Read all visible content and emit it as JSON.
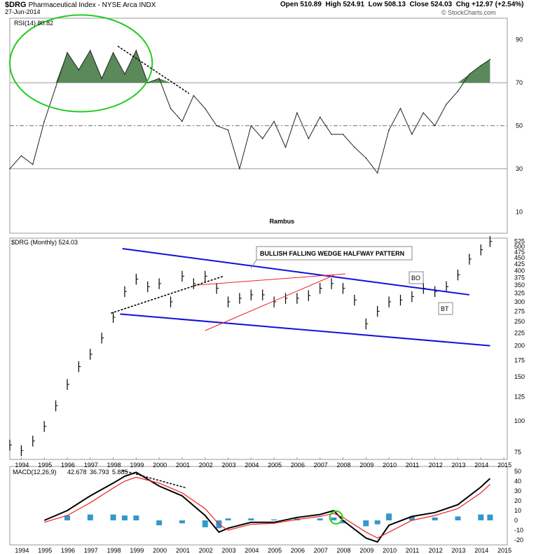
{
  "header": {
    "symbol": "$DRG",
    "name": "Pharmaceutical Index - NYSE Arca INDX",
    "date": "27-Jun-2014",
    "open_label": "Open",
    "open": "510.89",
    "high_label": "High",
    "high": "524.91",
    "low_label": "Low",
    "low": "508.13",
    "close_label": "Close",
    "close": "524.03",
    "chg_label": "Chg",
    "chg": "+12.97 (+2.54%)",
    "watermark": "© StockCharts.com"
  },
  "colors": {
    "rsi_fill": "#5a8a5a",
    "ellipse": "#22cc22",
    "wedge": "#1010dd",
    "red_line": "#ee2222",
    "macd_red": "#ee2222",
    "histogram": "#3399cc",
    "note_text": "#1010cc"
  },
  "chart_data": [
    {
      "type": "line",
      "panel": "RSI",
      "legend": "RSI(14) 80.82",
      "ylim": [
        0,
        100
      ],
      "y_ticks": [
        "90",
        "70",
        "50",
        "30",
        "10"
      ],
      "reference_lines": [
        70,
        50,
        30
      ],
      "annotation": "Rambus",
      "x": [
        1993.5,
        1994,
        1994.5,
        1995,
        1995.5,
        1996,
        1996.5,
        1997,
        1997.5,
        1998,
        1998.5,
        1999,
        1999.5,
        2000,
        2000.5,
        2001,
        2001.5,
        2002,
        2002.5,
        2003,
        2003.5,
        2004,
        2004.5,
        2005,
        2005.5,
        2006,
        2006.5,
        2007,
        2007.5,
        2008,
        2008.5,
        2009,
        2009.5,
        2010,
        2010.5,
        2011,
        2011.5,
        2012,
        2012.5,
        2013,
        2013.5,
        2014,
        2014.4
      ],
      "values": [
        30,
        36,
        32,
        52,
        68,
        84,
        76,
        85,
        72,
        84,
        74,
        85,
        70,
        72,
        58,
        52,
        64,
        58,
        50,
        48,
        30,
        50,
        44,
        52,
        40,
        56,
        44,
        54,
        46,
        46,
        40,
        35,
        28,
        48,
        58,
        46,
        56,
        50,
        60,
        66,
        74,
        78,
        80.8
      ]
    },
    {
      "type": "bar",
      "panel": "Price",
      "legend": "$DRG (Monthly) 524.03",
      "log_scale": true,
      "ylim": [
        70,
        540
      ],
      "y_ticks": [
        "525",
        "500",
        "475",
        "450",
        "425",
        "400",
        "375",
        "350",
        "325",
        "300",
        "275",
        "250",
        "225",
        "200",
        "175",
        "150",
        "125",
        "100",
        "75"
      ],
      "x_ticks": [
        "1994",
        "1995",
        "1996",
        "1997",
        "1998",
        "1999",
        "2000",
        "2001",
        "2002",
        "2003",
        "2004",
        "2005",
        "2006",
        "2007",
        "2008",
        "2009",
        "2010",
        "2011",
        "2012",
        "2013",
        "2014",
        "2015"
      ],
      "x": [
        1993.5,
        1994,
        1994.5,
        1995,
        1995.5,
        1996,
        1996.5,
        1997,
        1997.5,
        1998,
        1998.5,
        1999,
        1999.5,
        2000,
        2000.5,
        2001,
        2001.5,
        2002,
        2002.5,
        2003,
        2003.5,
        2004,
        2004.5,
        2005,
        2005.5,
        2006,
        2006.5,
        2007,
        2007.5,
        2008,
        2008.5,
        2009,
        2009.5,
        2010,
        2010.5,
        2011,
        2011.5,
        2012,
        2012.5,
        2013,
        2013.5,
        2014,
        2014.4
      ],
      "values": [
        80,
        76,
        83,
        95,
        115,
        140,
        165,
        185,
        215,
        260,
        330,
        370,
        345,
        355,
        300,
        380,
        355,
        380,
        340,
        300,
        310,
        320,
        320,
        300,
        310,
        310,
        318,
        340,
        355,
        340,
        305,
        245,
        275,
        300,
        305,
        315,
        340,
        330,
        345,
        385,
        445,
        485,
        524
      ],
      "annotations": [
        "BULLISH FALLING WEDGE HALFWAY PATTERN",
        "BO",
        "BT"
      ],
      "trendlines": [
        {
          "name": "wedge-upper",
          "from": [
            1998.4,
            490
          ],
          "to": [
            2013.5,
            320
          ]
        },
        {
          "name": "wedge-lower",
          "from": [
            1998.3,
            268
          ],
          "to": [
            2014.4,
            200
          ]
        },
        {
          "name": "red-support",
          "from": [
            2002.0,
            230
          ],
          "to": [
            2007.6,
            383
          ]
        },
        {
          "name": "red-top",
          "from": [
            2001.6,
            350
          ],
          "to": [
            2008.1,
            388
          ]
        },
        {
          "name": "black-dotted",
          "from": [
            1997.9,
            270
          ],
          "to": [
            2002.8,
            380
          ]
        }
      ]
    },
    {
      "type": "line",
      "panel": "MACD",
      "legend_label": "MACD(12,26,9)",
      "legend_values": [
        "42.678",
        "36.793",
        "5.885"
      ],
      "ylim": [
        -25,
        55
      ],
      "y_ticks": [
        "50",
        "40",
        "30",
        "20",
        "10",
        "0",
        "-10",
        "-20"
      ],
      "x_ticks": [
        "1994",
        "1995",
        "1996",
        "1997",
        "1998",
        "1999",
        "2000",
        "2001",
        "2002",
        "2003",
        "2004",
        "2005",
        "2006",
        "2007",
        "2008",
        "2009",
        "2010",
        "2011",
        "2012",
        "2013",
        "2014",
        "2015"
      ],
      "x": [
        1995,
        1996,
        1997,
        1998,
        1998.5,
        1999,
        2000,
        2001,
        2002,
        2002.6,
        2003,
        2004,
        2005,
        2006,
        2007,
        2007.6,
        2008,
        2009,
        2009.5,
        2010,
        2011,
        2012,
        2013,
        2014,
        2014.4
      ],
      "series": [
        {
          "values": [
            0,
            10,
            25,
            38,
            45,
            49,
            35,
            25,
            5,
            -12,
            -8,
            -2,
            -2,
            3,
            6,
            10,
            0,
            -18,
            -22,
            -5,
            4,
            8,
            16,
            34,
            42.7
          ]
        },
        {
          "values": [
            -2,
            5,
            18,
            33,
            40,
            44,
            38,
            28,
            12,
            -4,
            -10,
            -4,
            -3,
            1,
            4,
            7,
            3,
            -12,
            -18,
            -12,
            0,
            5,
            12,
            28,
            36.8
          ]
        }
      ],
      "histogram": [
        0,
        5,
        6,
        6,
        5,
        5,
        -5,
        -3,
        -7,
        -8,
        2,
        2,
        1,
        2,
        2,
        3,
        -3,
        -6,
        -4,
        7,
        4,
        3,
        4,
        6,
        5.9
      ]
    }
  ]
}
